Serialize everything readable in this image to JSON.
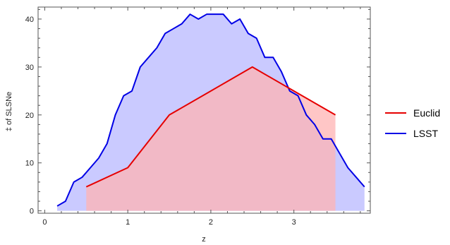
{
  "chart_data": {
    "type": "area",
    "xlabel": "z",
    "ylabel": "‡ of SLSNe",
    "xlim": [
      -0.08,
      3.92
    ],
    "ylim": [
      -0.5,
      42.5
    ],
    "x_ticks": [
      0,
      1,
      2,
      3
    ],
    "y_ticks": [
      0,
      10,
      20,
      30,
      40
    ],
    "legend_position": "right",
    "grid": false,
    "series": [
      {
        "name": "Euclid",
        "color": "#e60000",
        "fill": "#ffb3b3",
        "x": [
          0.5,
          1.0,
          1.5,
          2.0,
          2.5,
          3.0,
          3.5
        ],
        "y": [
          5,
          9,
          20,
          25,
          30,
          25,
          20
        ]
      },
      {
        "name": "LSST",
        "color": "#0000e6",
        "fill": "#b3b3ff",
        "x": [
          0.15,
          0.25,
          0.35,
          0.45,
          0.55,
          0.65,
          0.75,
          0.85,
          0.95,
          1.05,
          1.15,
          1.25,
          1.35,
          1.45,
          1.55,
          1.65,
          1.75,
          1.85,
          1.95,
          2.05,
          2.15,
          2.25,
          2.35,
          2.45,
          2.55,
          2.65,
          2.75,
          2.85,
          2.95,
          3.05,
          3.15,
          3.25,
          3.35,
          3.45,
          3.55,
          3.65,
          3.75,
          3.85
        ],
        "y": [
          1,
          2,
          6,
          7,
          9,
          11,
          14,
          20,
          24,
          25,
          30,
          32,
          34,
          37,
          38,
          39,
          41,
          40,
          41,
          41,
          41,
          39,
          40,
          37,
          36,
          32,
          32,
          29,
          25,
          24,
          20,
          18,
          15,
          15,
          12,
          9,
          7,
          5
        ]
      }
    ]
  }
}
